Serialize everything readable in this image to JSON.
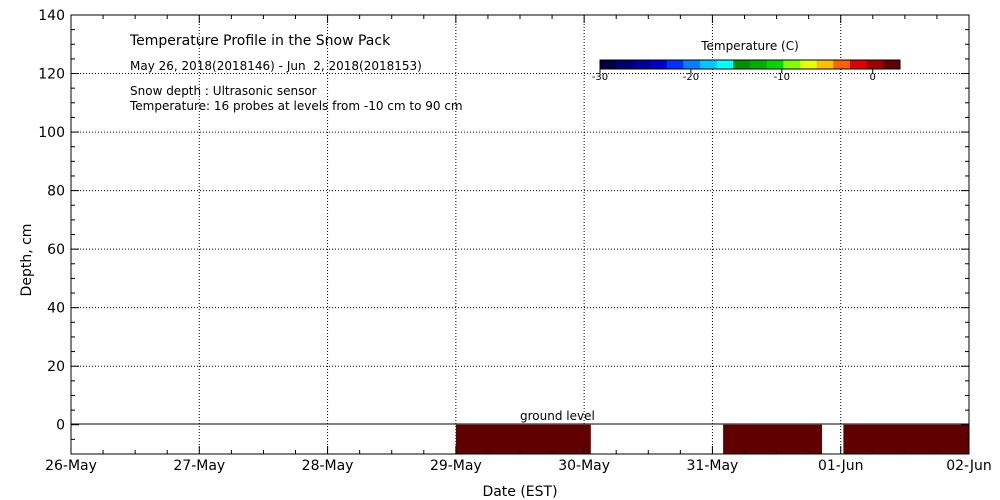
{
  "chart_data": {
    "type": "area",
    "title": "Temperature Profile in the Snow Pack",
    "subtitle": "May 26, 2018(2018146) - Jun  2, 2018(2018153)",
    "annotations": [
      "Snow depth : Ultrasonic sensor",
      "Temperature: 16 probes at levels from -10 cm to 90 cm"
    ],
    "ground_label": "ground level",
    "xlabel": "Date (EST)",
    "ylabel": "Depth, cm",
    "xlim": [
      "2018-05-26",
      "2018-06-02"
    ],
    "ylim": [
      -10,
      140
    ],
    "x_ticks": [
      "26-May",
      "27-May",
      "28-May",
      "29-May",
      "30-May",
      "31-May",
      "01-Jun",
      "02-Jun"
    ],
    "y_ticks": [
      0,
      20,
      40,
      60,
      80,
      100,
      120,
      140
    ],
    "grid": true,
    "colorbar": {
      "label": "Temperature (C)",
      "range": [
        -30,
        3
      ],
      "tick_values": [
        -30,
        -20,
        -10,
        0
      ],
      "tick_labels": [
        "-30",
        "-20",
        "-10",
        "0"
      ],
      "colors": [
        "#00004a",
        "#000070",
        "#000098",
        "#0000c8",
        "#0030ff",
        "#0080ff",
        "#00c8ff",
        "#00ffff",
        "#009000",
        "#00b000",
        "#00d800",
        "#80ff00",
        "#e8ff00",
        "#ffc000",
        "#ff6000",
        "#e00000",
        "#a00000",
        "#600000"
      ]
    },
    "series": [
      {
        "fill_color": "#600000",
        "segments": [
          {
            "start": "2018-05-29 00:00",
            "end": "2018-05-30 01:15",
            "top": 0,
            "bottom": -10
          },
          {
            "start": "2018-05-31 02:00",
            "end": "2018-05-31 20:30",
            "top": 0,
            "bottom": -10
          },
          {
            "start": "2018-06-01 00:30",
            "end": "2018-06-02 00:00",
            "top": 0,
            "bottom": -10
          }
        ]
      }
    ]
  }
}
